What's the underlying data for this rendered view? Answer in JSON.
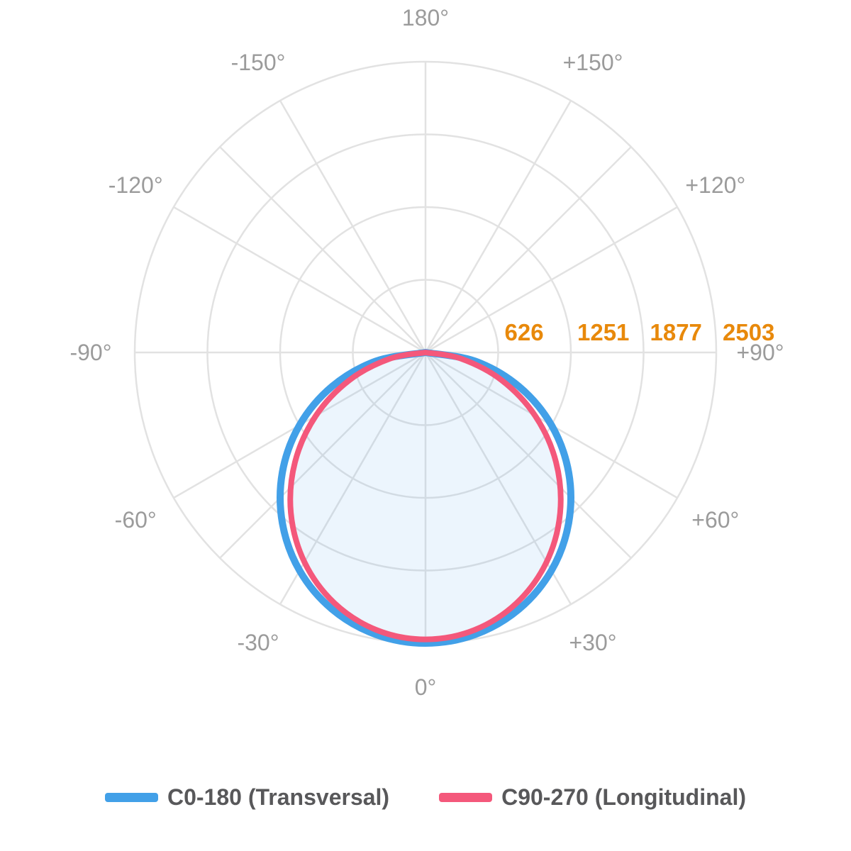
{
  "chart_data": {
    "type": "line",
    "subtype": "polar-photometric-distribution",
    "title": "",
    "angle_axis": {
      "unit": "degrees",
      "zero_position": "bottom",
      "label_color": "#9B9B9B",
      "ticks": [
        {
          "angle": 0,
          "label": "0°"
        },
        {
          "angle": 30,
          "label": "+30°"
        },
        {
          "angle": -30,
          "label": "-30°"
        },
        {
          "angle": 60,
          "label": "+60°"
        },
        {
          "angle": -60,
          "label": "-60°"
        },
        {
          "angle": 90,
          "label": "+90°"
        },
        {
          "angle": -90,
          "label": "-90°"
        },
        {
          "angle": 120,
          "label": "+120°"
        },
        {
          "angle": -120,
          "label": "-120°"
        },
        {
          "angle": 150,
          "label": "+150°"
        },
        {
          "angle": -150,
          "label": "-150°"
        },
        {
          "angle": 180,
          "label": "180°"
        }
      ]
    },
    "radial_axis": {
      "max": 2503,
      "label_color": "#E8890B",
      "ticks": [
        {
          "value": 626,
          "label": "626"
        },
        {
          "value": 1251,
          "label": "1251"
        },
        {
          "value": 1877,
          "label": "1877"
        },
        {
          "value": 2503,
          "label": "2503"
        }
      ]
    },
    "grid": {
      "ring_count": 4,
      "spoke_angles_deg": [
        0,
        30,
        45,
        60,
        90,
        120,
        135,
        150,
        180,
        210,
        225,
        240,
        270,
        300,
        315,
        330
      ],
      "color": "#E2E2E2"
    },
    "series": [
      {
        "name": "C0-180 (Transversal)",
        "color": "#42A0E8",
        "stroke_width": 10,
        "filled": false,
        "angles_deg": [
          -90,
          -80,
          -70,
          -60,
          -50,
          -40,
          -30,
          -20,
          -10,
          0,
          10,
          20,
          30,
          40,
          50,
          60,
          70,
          80,
          90
        ],
        "values": [
          0,
          435,
          856,
          1252,
          1609,
          1917,
          2168,
          2352,
          2465,
          2503,
          2465,
          2352,
          2168,
          1917,
          1609,
          1252,
          856,
          435,
          0
        ]
      },
      {
        "name": "C90-270 (Longitudinal)",
        "color": "#F4587B",
        "stroke_width": 8,
        "filled": true,
        "fill_color": "rgba(66,160,232,0.10)",
        "angles_deg": [
          -90,
          -80,
          -70,
          -60,
          -50,
          -40,
          -30,
          -20,
          -10,
          0,
          10,
          20,
          30,
          40,
          50,
          60,
          70,
          80,
          90
        ],
        "values": [
          0,
          313,
          697,
          1090,
          1466,
          1803,
          2084,
          2295,
          2426,
          2470,
          2426,
          2295,
          2084,
          1803,
          1466,
          1090,
          697,
          313,
          0
        ]
      }
    ],
    "legend": {
      "position": "bottom-center",
      "items": [
        {
          "label": "C0-180 (Transversal)",
          "color": "#42A0E8"
        },
        {
          "label": "C90-270 (Longitudinal)",
          "color": "#F4587B"
        }
      ]
    }
  }
}
